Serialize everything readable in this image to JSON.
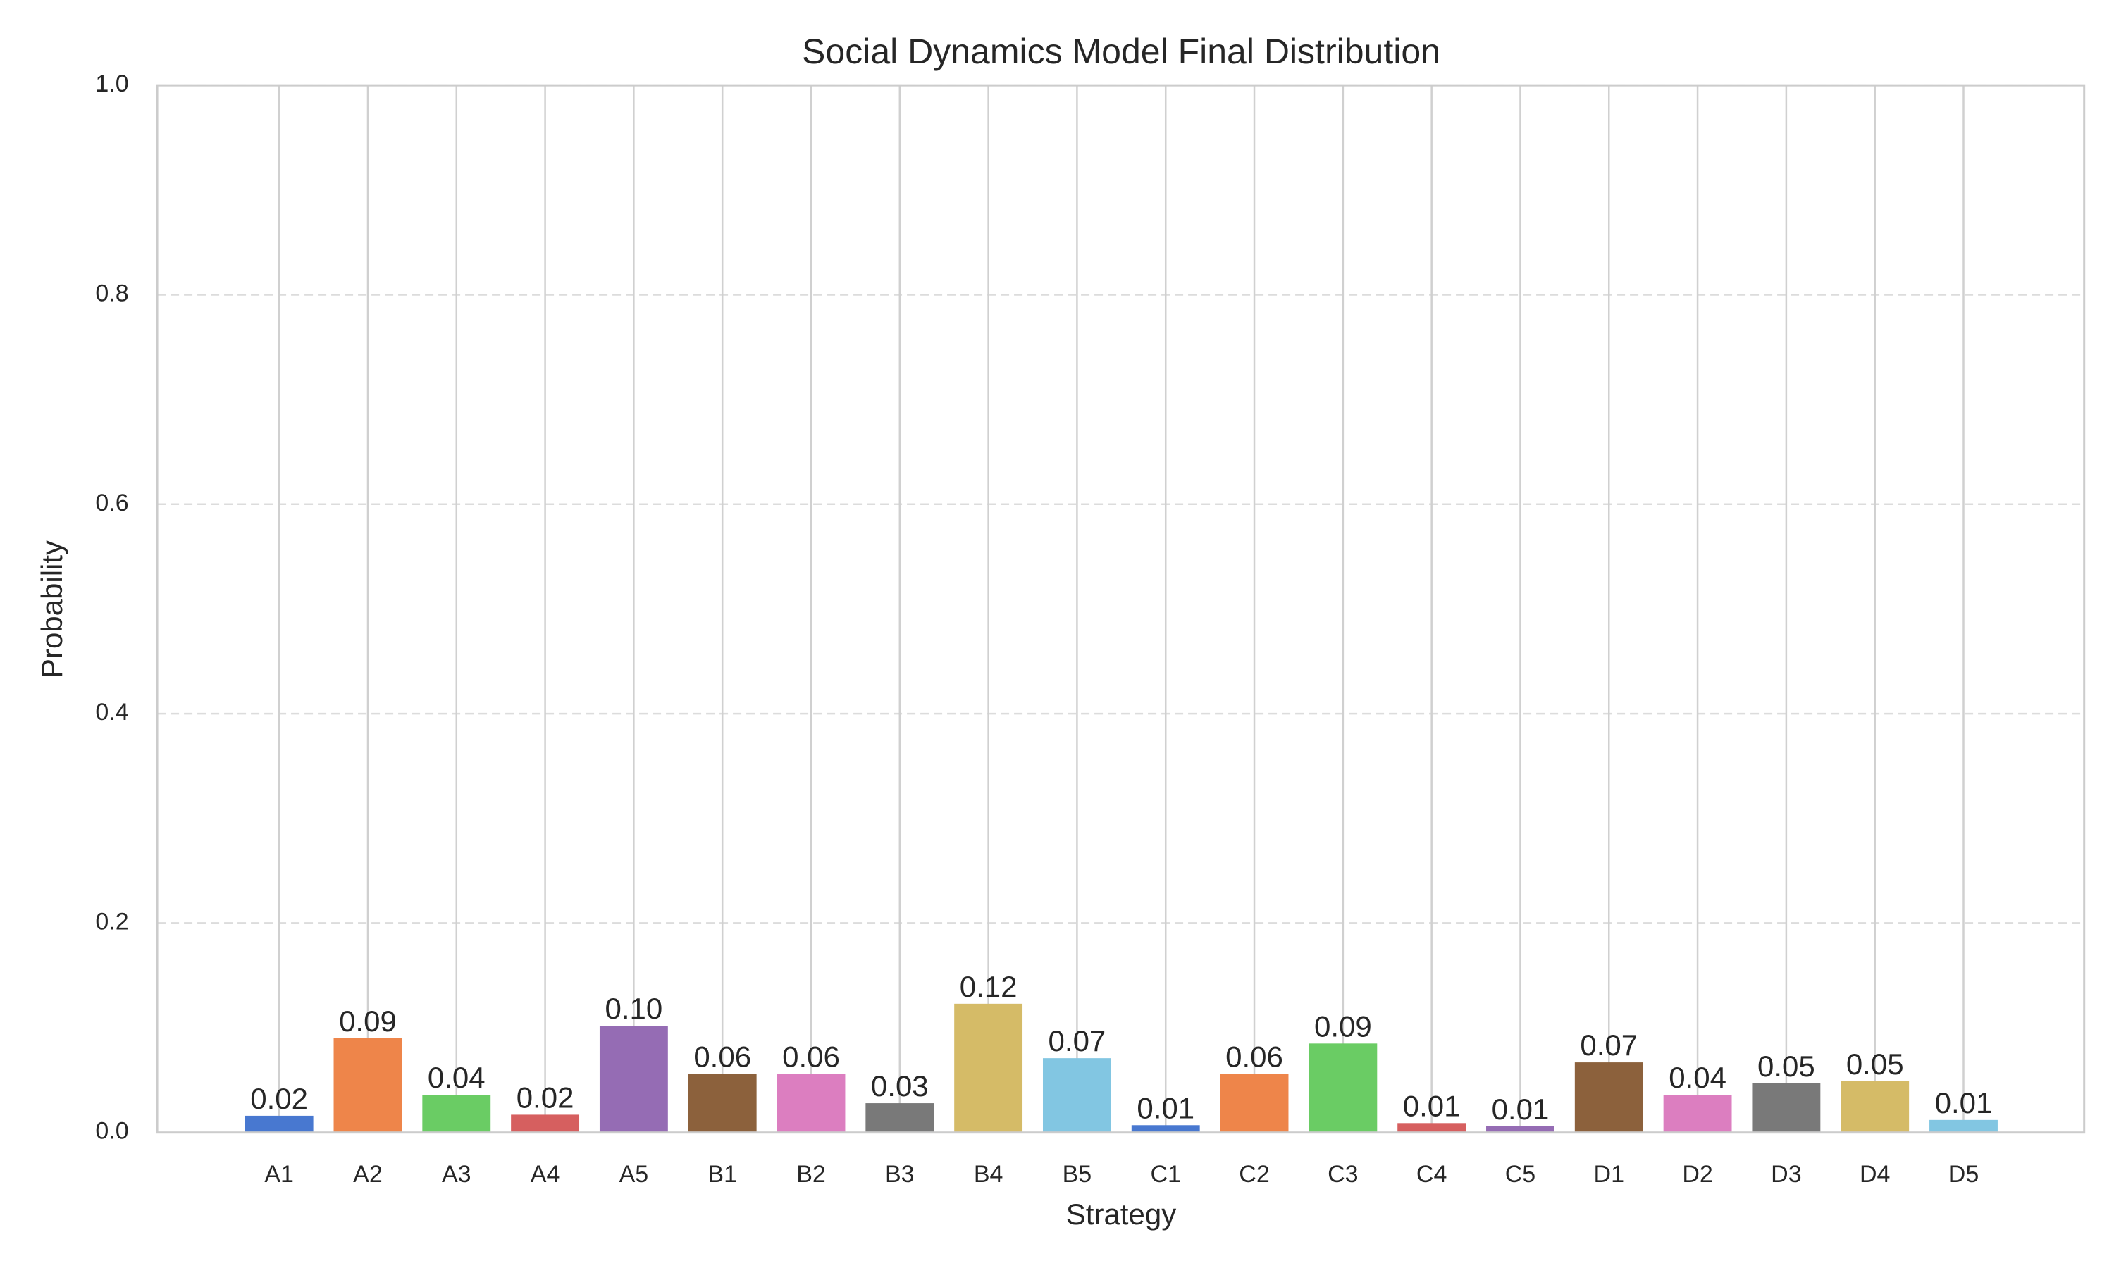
{
  "chart_data": {
    "type": "bar",
    "title": "Social Dynamics Model Final Distribution",
    "x_label": "Strategy",
    "y_label": "Probability",
    "categories": [
      "A1",
      "A2",
      "A3",
      "A4",
      "A5",
      "B1",
      "B2",
      "B3",
      "B4",
      "B5",
      "C1",
      "C2",
      "C3",
      "C4",
      "C5",
      "D1",
      "D2",
      "D3",
      "D4",
      "D5"
    ],
    "values": [
      0.016,
      0.09,
      0.036,
      0.017,
      0.102,
      0.056,
      0.056,
      0.028,
      0.123,
      0.071,
      0.007,
      0.056,
      0.085,
      0.009,
      0.006,
      0.067,
      0.036,
      0.047,
      0.049,
      0.012
    ],
    "value_labels": [
      "0.02",
      "0.09",
      "0.04",
      "0.02",
      "0.10",
      "0.06",
      "0.06",
      "0.03",
      "0.12",
      "0.07",
      "0.01",
      "0.06",
      "0.09",
      "0.01",
      "0.01",
      "0.07",
      "0.04",
      "0.05",
      "0.05",
      "0.01"
    ],
    "colors": [
      "#4878d0",
      "#ee854a",
      "#6acc64",
      "#d65f5f",
      "#956cb4",
      "#8c613c",
      "#dc7ec0",
      "#797979",
      "#d5bb67",
      "#82c6e2",
      "#4878d0",
      "#ee854a",
      "#6acc64",
      "#d65f5f",
      "#956cb4",
      "#8c613c",
      "#dc7ec0",
      "#797979",
      "#d5bb67",
      "#82c6e2"
    ],
    "ylim": [
      0,
      1
    ],
    "yticks": [
      {
        "value": 0,
        "label": "0.0"
      },
      0.2,
      0.4,
      0.6,
      0.8,
      {
        "value": 1,
        "label": "1.0"
      }
    ],
    "grid": true
  }
}
